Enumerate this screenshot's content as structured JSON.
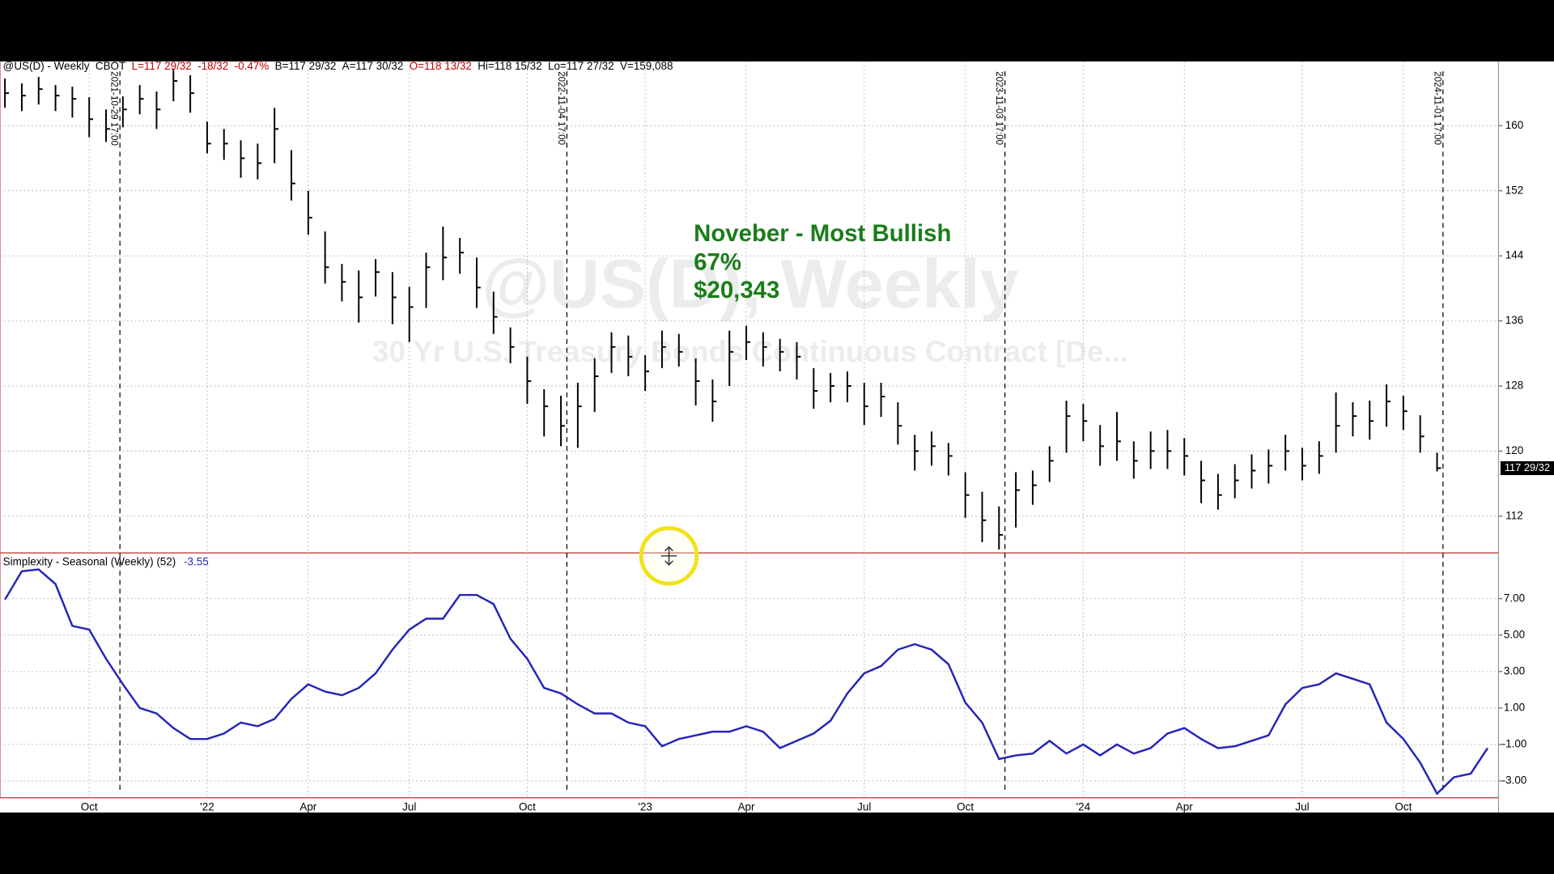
{
  "header": {
    "items": [
      "@US(D) - Weekly",
      "CBOT",
      "L=117 29/32",
      "-18/32",
      "-0.47%",
      "B=117 29/32",
      "A=117 30/32",
      "O=118 13/32",
      "Hi=118 15/32",
      "Lo=117 27/32",
      "V=159,088"
    ]
  },
  "watermark": {
    "symbol": "@US(D), Weekly",
    "description": "30 Yr U.S. Treasury Bonds Continuous Contract [De..."
  },
  "annotation": [
    "Noveber - Most Bullish",
    "67%",
    "$20,343"
  ],
  "event_lines": [
    "2021-10-29 17:00",
    "2022-11-04 17:00",
    "2023-11-03 17:00",
    "2024-11-01 17:00"
  ],
  "chart_data": [
    {
      "type": "ohlc",
      "color": "#000000",
      "last_label": "117 29/32",
      "categories": [
        null,
        null,
        null,
        null,
        null,
        "Oct",
        null,
        null,
        null,
        null,
        null,
        null,
        "'22",
        null,
        null,
        null,
        null,
        null,
        "Apr",
        null,
        null,
        null,
        null,
        null,
        "Jul",
        null,
        null,
        null,
        null,
        null,
        null,
        "Oct",
        null,
        null,
        null,
        null,
        null,
        null,
        "'23",
        null,
        null,
        null,
        null,
        null,
        "Apr",
        null,
        null,
        null,
        null,
        null,
        null,
        "Jul",
        null,
        null,
        null,
        null,
        null,
        "Oct",
        null,
        null,
        null,
        null,
        null,
        null,
        "'24",
        null,
        null,
        null,
        null,
        null,
        "Apr",
        null,
        null,
        null,
        null,
        null,
        null,
        "Jul",
        null,
        null,
        null,
        null,
        null,
        "Oct",
        null,
        null,
        null,
        null,
        null
      ],
      "high": [
        165.8,
        165.2,
        166,
        165,
        164.8,
        163.5,
        162,
        163.6,
        165,
        164.2,
        167,
        166.2,
        160.5,
        159.6,
        158.2,
        157.8,
        162.2,
        157,
        152,
        147,
        143,
        142.2,
        143.6,
        142,
        140.2,
        144.4,
        147.6,
        146.2,
        143.8,
        139.6,
        135.2,
        131.6,
        127.6,
        126.8,
        128.4,
        131.4,
        134.6,
        134.2,
        131.8,
        134.8,
        134.4,
        131.4,
        128.8,
        134.8,
        135.4,
        134.6,
        133.8,
        133.4,
        130.2,
        129.6,
        129.8,
        128.4,
        128.4,
        126,
        122,
        122.4,
        121,
        117.4,
        115,
        113.2,
        117.4,
        117.6,
        120.6,
        126.2,
        125.8,
        123.2,
        124.8,
        121.2,
        122.4,
        122.6,
        121.6,
        118.8,
        117.2,
        118.4,
        119.6,
        120.2,
        122,
        120.4,
        121.2,
        127.2,
        126,
        126.2,
        128.2,
        126.8,
        124.4,
        119.8,
        null,
        null,
        null
      ],
      "low": [
        162.2,
        161.8,
        162.6,
        161.8,
        161,
        158.6,
        158,
        159.8,
        161.4,
        159.6,
        163,
        161.6,
        156.6,
        155.8,
        153.6,
        153.4,
        155.4,
        150.8,
        146.6,
        140.6,
        138.4,
        135.8,
        139,
        135.6,
        133.4,
        137.6,
        141,
        141.8,
        137.6,
        134.4,
        130.8,
        125.8,
        121.8,
        120.6,
        120.4,
        124.8,
        129.6,
        129.2,
        127.4,
        130.2,
        130.4,
        125.6,
        123.6,
        128,
        131.2,
        130.4,
        129.8,
        128.8,
        125.2,
        126,
        126,
        123.2,
        124.2,
        120.8,
        117.6,
        118.2,
        117,
        111.8,
        108.8,
        107.9,
        110.6,
        113.4,
        116.2,
        119.8,
        121.2,
        118.2,
        118.8,
        116.6,
        117.8,
        117.8,
        117,
        113.6,
        112.8,
        114.2,
        115.4,
        116,
        117.6,
        116.4,
        117.2,
        119.8,
        121.8,
        121.4,
        123,
        122.6,
        119.8,
        117.5,
        null,
        null,
        null
      ],
      "close": [
        164,
        163.7,
        164.5,
        163.7,
        163.3,
        160.8,
        159.6,
        162,
        163.3,
        162,
        165.5,
        164,
        157.8,
        157.8,
        156,
        155.4,
        159.6,
        152.9,
        148.7,
        142.6,
        140.8,
        138.9,
        142,
        138.9,
        137.7,
        142.6,
        143.8,
        144.4,
        140.1,
        136.5,
        132.8,
        128.6,
        125.5,
        123.1,
        125.5,
        129.2,
        132.8,
        131.6,
        129.8,
        132.8,
        132.2,
        128.6,
        126.1,
        132.2,
        133.4,
        132.8,
        132.2,
        131.6,
        127.4,
        128,
        128,
        125.5,
        126.7,
        123.1,
        120,
        120.6,
        119.4,
        114.6,
        111.5,
        109.7,
        115.2,
        115.8,
        118.8,
        124.3,
        123.7,
        120.6,
        121.2,
        118.8,
        120,
        120,
        119.4,
        116.4,
        114.6,
        116.4,
        117.6,
        118.2,
        120,
        118.2,
        119.4,
        123.1,
        124.3,
        123.7,
        126.1,
        124.9,
        121.8,
        117.9,
        null,
        null,
        null
      ],
      "ylim": [
        107.6,
        167.9
      ],
      "yticks": [
        112,
        120,
        128,
        136,
        144,
        152,
        160
      ],
      "grid": true
    },
    {
      "type": "line",
      "title": "Simplexity - Seasonal (Weekly) (52)",
      "current_value": -3.55,
      "color": "#2424b8",
      "values": [
        6.95,
        8.5,
        8.6,
        7.8,
        5.5,
        5.3,
        3.7,
        2.3,
        1.0,
        0.7,
        -0.1,
        -0.7,
        -0.7,
        -0.4,
        0.2,
        0.0,
        0.4,
        1.5,
        2.3,
        1.9,
        1.7,
        2.1,
        2.9,
        4.2,
        5.3,
        5.9,
        5.9,
        7.2,
        7.2,
        6.7,
        4.8,
        3.7,
        2.1,
        1.8,
        1.2,
        0.7,
        0.7,
        0.2,
        0.0,
        -1.1,
        -0.7,
        -0.5,
        -0.3,
        -0.3,
        0.0,
        -0.3,
        -1.2,
        -0.8,
        -0.4,
        0.3,
        1.8,
        2.9,
        3.3,
        4.2,
        4.5,
        4.2,
        3.4,
        1.3,
        0.2,
        -1.8,
        -1.6,
        -1.5,
        -0.8,
        -1.5,
        -1.0,
        -1.6,
        -1.0,
        -1.5,
        -1.2,
        -0.4,
        -0.1,
        -0.7,
        -1.2,
        -1.1,
        -0.8,
        -0.5,
        1.2,
        2.1,
        2.3,
        2.9,
        2.6,
        2.3,
        0.2,
        -0.7,
        -2.0,
        -3.7,
        -2.8,
        -2.6,
        -1.2
      ],
      "ylim": [
        -3.92,
        9.45
      ],
      "yticks": [
        {
          "value": -3,
          "label": "-3.00"
        },
        {
          "value": -1,
          "label": "-1.00"
        },
        {
          "value": 1,
          "label": "1.00"
        },
        {
          "value": 3,
          "label": "3.00"
        },
        {
          "value": 5,
          "label": "5.00"
        },
        {
          "value": 7,
          "label": "7.00"
        }
      ],
      "grid": true
    }
  ]
}
